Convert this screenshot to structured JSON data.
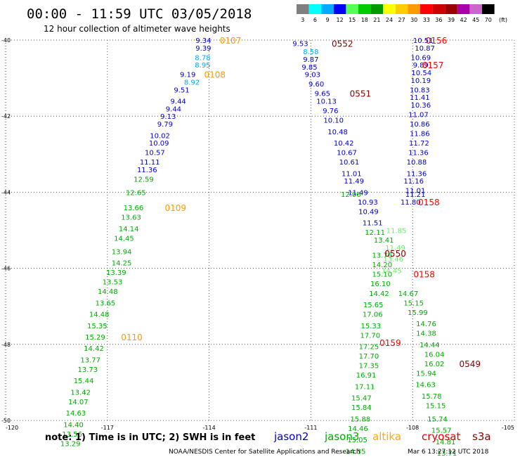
{
  "header": {
    "title": "00:00 - 11:59 UTC 03/05/2018",
    "subtitle": "12 hour collection of altimeter wave heights"
  },
  "legend": {
    "unit": "(ft)",
    "bins": [
      {
        "label": "3",
        "color": "#7f7f7f"
      },
      {
        "label": "6",
        "color": "#00ffff"
      },
      {
        "label": "9",
        "color": "#00aaff"
      },
      {
        "label": "12",
        "color": "#0000ff"
      },
      {
        "label": "15",
        "color": "#55ff55"
      },
      {
        "label": "18",
        "color": "#00cc00"
      },
      {
        "label": "21",
        "color": "#009900"
      },
      {
        "label": "24",
        "color": "#ffff00"
      },
      {
        "label": "27",
        "color": "#ffcc00"
      },
      {
        "label": "30",
        "color": "#ff9900"
      },
      {
        "label": "33",
        "color": "#ff0000"
      },
      {
        "label": "36",
        "color": "#cc0000"
      },
      {
        "label": "39",
        "color": "#990000"
      },
      {
        "label": "42",
        "color": "#aa00aa"
      },
      {
        "label": "45",
        "color": "#cc66cc"
      },
      {
        "label": "70",
        "color": "#000000"
      }
    ]
  },
  "footer": {
    "note": "note: 1) Time is in UTC; 2) SWH is in feet",
    "credit": "NOAA/NESDIS Center for Satellite Applications and Research",
    "timestamp": "Mar  6 13:27:12 UTC 2018",
    "satellites": [
      {
        "name": "jason2",
        "color": "#0000cc"
      },
      {
        "name": "jason3",
        "color": "#00aa00"
      },
      {
        "name": "altika",
        "color": "#ffaa00"
      },
      {
        "name": "cryosat",
        "color": "#dd0000"
      },
      {
        "name": "s3a",
        "color": "#880000"
      }
    ]
  },
  "chart_data": {
    "type": "scatter",
    "x_range": [
      -120,
      -105
    ],
    "y_range": [
      -50,
      -40
    ],
    "x_ticks": [
      {
        "value": -120,
        "label": "-120"
      },
      {
        "value": -117,
        "label": "-117"
      },
      {
        "value": -114,
        "label": "-114"
      },
      {
        "value": -111,
        "label": "-111"
      },
      {
        "value": -108,
        "label": "-108"
      },
      {
        "value": -105,
        "label": "-105"
      }
    ],
    "y_ticks": [
      {
        "value": -40,
        "label": "-40"
      },
      {
        "value": -42,
        "label": "-42"
      },
      {
        "value": -44,
        "label": "-44"
      },
      {
        "value": -46,
        "label": "-46"
      },
      {
        "value": -48,
        "label": "-48"
      },
      {
        "value": -50,
        "label": "-50"
      }
    ],
    "grid": true,
    "track_labels": [
      {
        "text": "0107",
        "lon": -113.37,
        "lat": -40.0,
        "color": "#ff9900"
      },
      {
        "text": "0108",
        "lon": -113.83,
        "lat": -40.9,
        "color": "#ff9900"
      },
      {
        "text": "0109",
        "lon": -114.99,
        "lat": -44.4,
        "color": "#ff9900"
      },
      {
        "text": "0110",
        "lon": -116.28,
        "lat": -47.8,
        "color": "#ff9900"
      },
      {
        "text": "0552",
        "lon": -110.07,
        "lat": -40.08,
        "color": "#880000"
      },
      {
        "text": "0551",
        "lon": -109.54,
        "lat": -41.4,
        "color": "#880000"
      },
      {
        "text": "0550",
        "lon": -108.51,
        "lat": -45.6,
        "color": "#880000"
      },
      {
        "text": "0549",
        "lon": -106.31,
        "lat": -48.5,
        "color": "#880000"
      },
      {
        "text": "0156",
        "lon": -107.3,
        "lat": -40.0,
        "color": "#ff0000"
      },
      {
        "text": "0157",
        "lon": -107.4,
        "lat": -40.65,
        "color": "#ff0000"
      },
      {
        "text": "0158",
        "lon": -107.52,
        "lat": -44.25,
        "color": "#ff0000"
      },
      {
        "text": "0158",
        "lon": -107.66,
        "lat": -46.15,
        "color": "#ff0000"
      },
      {
        "text": "0159",
        "lon": -108.66,
        "lat": -47.95,
        "color": "#ff0000"
      }
    ],
    "series": [
      {
        "name": "jason2",
        "color": "#0000cc",
        "points": [
          {
            "lon": -114.17,
            "lat": -40.0,
            "swh": "9.34"
          },
          {
            "lon": -114.17,
            "lat": -40.2,
            "swh": "9.39"
          },
          {
            "lon": -114.63,
            "lat": -40.9,
            "swh": "9.19"
          },
          {
            "lon": -114.81,
            "lat": -41.3,
            "swh": "9.51"
          },
          {
            "lon": -114.91,
            "lat": -41.6,
            "swh": "9.44"
          },
          {
            "lon": -115.05,
            "lat": -41.8,
            "swh": "9.44"
          },
          {
            "lon": -115.21,
            "lat": -42.0,
            "swh": "9.13"
          },
          {
            "lon": -115.3,
            "lat": -42.2,
            "swh": "9.79"
          },
          {
            "lon": -115.45,
            "lat": -42.5,
            "swh": "10.02"
          },
          {
            "lon": -115.48,
            "lat": -42.7,
            "swh": "10.09"
          },
          {
            "lon": -115.6,
            "lat": -42.95,
            "swh": "10.57"
          },
          {
            "lon": -115.75,
            "lat": -43.2,
            "swh": "11.11"
          },
          {
            "lon": -115.83,
            "lat": -43.4,
            "swh": "11.36"
          },
          {
            "lon": -111.31,
            "lat": -40.08,
            "swh": "9.53"
          },
          {
            "lon": -111.0,
            "lat": -40.5,
            "swh": "9.87"
          },
          {
            "lon": -111.04,
            "lat": -40.7,
            "swh": "9.85"
          },
          {
            "lon": -110.95,
            "lat": -40.9,
            "swh": "9.03"
          },
          {
            "lon": -110.84,
            "lat": -41.15,
            "swh": "9.60"
          },
          {
            "lon": -110.66,
            "lat": -41.4,
            "swh": "9.65"
          },
          {
            "lon": -110.54,
            "lat": -41.6,
            "swh": "10.13"
          },
          {
            "lon": -110.42,
            "lat": -41.85,
            "swh": "9.76"
          },
          {
            "lon": -110.33,
            "lat": -42.1,
            "swh": "10.10"
          },
          {
            "lon": -110.21,
            "lat": -42.4,
            "swh": "10.48"
          },
          {
            "lon": -110.03,
            "lat": -42.7,
            "swh": "10.42"
          },
          {
            "lon": -109.94,
            "lat": -42.95,
            "swh": "10.67"
          },
          {
            "lon": -109.87,
            "lat": -43.2,
            "swh": "10.61"
          },
          {
            "lon": -109.8,
            "lat": -43.5,
            "swh": "11.01"
          },
          {
            "lon": -109.73,
            "lat": -43.7,
            "swh": "11.49"
          },
          {
            "lon": -109.61,
            "lat": -44.0,
            "swh": "11.49"
          },
          {
            "lon": -109.32,
            "lat": -44.25,
            "swh": "10.93"
          },
          {
            "lon": -109.3,
            "lat": -44.5,
            "swh": "10.49"
          },
          {
            "lon": -109.18,
            "lat": -44.8,
            "swh": "11.51"
          },
          {
            "lon": -107.69,
            "lat": -40.0,
            "swh": "10.51"
          },
          {
            "lon": -107.64,
            "lat": -40.2,
            "swh": "10.87"
          },
          {
            "lon": -107.76,
            "lat": -40.45,
            "swh": "10.69"
          },
          {
            "lon": -107.76,
            "lat": -40.65,
            "swh": "9.89"
          },
          {
            "lon": -107.74,
            "lat": -40.85,
            "swh": "10.54"
          },
          {
            "lon": -107.76,
            "lat": -41.05,
            "swh": "10.19"
          },
          {
            "lon": -107.79,
            "lat": -41.3,
            "swh": "10.83"
          },
          {
            "lon": -107.79,
            "lat": -41.5,
            "swh": "11.41"
          },
          {
            "lon": -107.76,
            "lat": -41.7,
            "swh": "10.36"
          },
          {
            "lon": -107.83,
            "lat": -41.95,
            "swh": "11.07"
          },
          {
            "lon": -107.79,
            "lat": -42.2,
            "swh": "10.86"
          },
          {
            "lon": -107.79,
            "lat": -42.45,
            "swh": "11.86"
          },
          {
            "lon": -107.81,
            "lat": -42.7,
            "swh": "11.72"
          },
          {
            "lon": -107.83,
            "lat": -42.95,
            "swh": "11.36"
          },
          {
            "lon": -107.88,
            "lat": -43.2,
            "swh": "10.88"
          },
          {
            "lon": -107.88,
            "lat": -43.5,
            "swh": "11.36"
          },
          {
            "lon": -107.97,
            "lat": -43.7,
            "swh": "11.16"
          },
          {
            "lon": -107.92,
            "lat": -43.95,
            "swh": "11.01"
          },
          {
            "lon": -107.92,
            "lat": -44.05,
            "swh": "11.21"
          },
          {
            "lon": -108.06,
            "lat": -44.25,
            "swh": "11.80"
          }
        ]
      },
      {
        "name": "jason3",
        "color": "#00aa00",
        "points": [
          {
            "lon": -115.93,
            "lat": -43.65,
            "swh": "12.59"
          },
          {
            "lon": -116.16,
            "lat": -44.0,
            "swh": "12.65"
          },
          {
            "lon": -116.23,
            "lat": -44.4,
            "swh": "13.66"
          },
          {
            "lon": -116.3,
            "lat": -44.65,
            "swh": "13.63"
          },
          {
            "lon": -116.37,
            "lat": -44.95,
            "swh": "14.14"
          },
          {
            "lon": -116.51,
            "lat": -45.2,
            "swh": "14.45"
          },
          {
            "lon": -116.58,
            "lat": -45.55,
            "swh": "13.94"
          },
          {
            "lon": -116.58,
            "lat": -45.85,
            "swh": "14.25"
          },
          {
            "lon": -116.74,
            "lat": -46.1,
            "swh": "13.39"
          },
          {
            "lon": -116.85,
            "lat": -46.35,
            "swh": "13.53"
          },
          {
            "lon": -116.99,
            "lat": -46.6,
            "swh": "14.48"
          },
          {
            "lon": -117.06,
            "lat": -46.9,
            "swh": "13.65"
          },
          {
            "lon": -117.24,
            "lat": -47.2,
            "swh": "14.48"
          },
          {
            "lon": -117.3,
            "lat": -47.5,
            "swh": "15.35"
          },
          {
            "lon": -117.36,
            "lat": -47.8,
            "swh": "15.29"
          },
          {
            "lon": -117.4,
            "lat": -48.1,
            "swh": "14.42"
          },
          {
            "lon": -117.5,
            "lat": -48.4,
            "swh": "13.77"
          },
          {
            "lon": -117.58,
            "lat": -48.65,
            "swh": "13.73"
          },
          {
            "lon": -117.7,
            "lat": -48.95,
            "swh": "15.44"
          },
          {
            "lon": -117.79,
            "lat": -49.25,
            "swh": "13.42"
          },
          {
            "lon": -117.86,
            "lat": -49.5,
            "swh": "14.07"
          },
          {
            "lon": -117.93,
            "lat": -49.8,
            "swh": "14.63"
          },
          {
            "lon": -118.0,
            "lat": -50.1,
            "swh": "14.40"
          },
          {
            "lon": -118.04,
            "lat": -50.35,
            "swh": "13.56"
          },
          {
            "lon": -118.09,
            "lat": -50.6,
            "swh": "13.29"
          },
          {
            "lon": -109.82,
            "lat": -44.05,
            "swh": "12.06"
          },
          {
            "lon": -109.11,
            "lat": -45.05,
            "swh": "12.11"
          },
          {
            "lon": -108.85,
            "lat": -45.25,
            "swh": "13.41"
          },
          {
            "lon": -108.9,
            "lat": -45.65,
            "swh": "13.76"
          },
          {
            "lon": -108.9,
            "lat": -45.9,
            "swh": "14.20"
          },
          {
            "lon": -108.9,
            "lat": -46.15,
            "swh": "15.10"
          },
          {
            "lon": -108.95,
            "lat": -46.4,
            "swh": "16.10"
          },
          {
            "lon": -108.99,
            "lat": -46.65,
            "swh": "14.42"
          },
          {
            "lon": -109.16,
            "lat": -46.95,
            "swh": "15.65"
          },
          {
            "lon": -109.18,
            "lat": -47.2,
            "swh": "17.06"
          },
          {
            "lon": -109.23,
            "lat": -47.5,
            "swh": "15.33"
          },
          {
            "lon": -109.25,
            "lat": -47.75,
            "swh": "17.70"
          },
          {
            "lon": -109.29,
            "lat": -48.05,
            "swh": "17.25"
          },
          {
            "lon": -109.29,
            "lat": -48.3,
            "swh": "17.70"
          },
          {
            "lon": -109.29,
            "lat": -48.55,
            "swh": "17.35"
          },
          {
            "lon": -109.37,
            "lat": -48.8,
            "swh": "16.91"
          },
          {
            "lon": -109.41,
            "lat": -49.1,
            "swh": "17.11"
          },
          {
            "lon": -109.51,
            "lat": -49.4,
            "swh": "15.47"
          },
          {
            "lon": -109.51,
            "lat": -49.65,
            "swh": "15.84"
          },
          {
            "lon": -109.54,
            "lat": -49.95,
            "swh": "15.88"
          },
          {
            "lon": -109.61,
            "lat": -50.2,
            "swh": "14.46"
          },
          {
            "lon": -109.63,
            "lat": -50.5,
            "swh": "15.05"
          },
          {
            "lon": -109.68,
            "lat": -50.8,
            "swh": "14.35"
          },
          {
            "lon": -108.13,
            "lat": -46.65,
            "swh": "14.67"
          },
          {
            "lon": -107.97,
            "lat": -46.9,
            "swh": "15.15"
          },
          {
            "lon": -107.85,
            "lat": -47.15,
            "swh": "15.99"
          },
          {
            "lon": -107.6,
            "lat": -47.45,
            "swh": "14.76"
          },
          {
            "lon": -107.6,
            "lat": -47.7,
            "swh": "14.38"
          },
          {
            "lon": -107.5,
            "lat": -48.0,
            "swh": "14.44"
          },
          {
            "lon": -107.36,
            "lat": -48.25,
            "swh": "16.04"
          },
          {
            "lon": -107.36,
            "lat": -48.5,
            "swh": "16.02"
          },
          {
            "lon": -107.6,
            "lat": -48.75,
            "swh": "15.94"
          },
          {
            "lon": -107.62,
            "lat": -49.05,
            "swh": "14.63"
          },
          {
            "lon": -107.44,
            "lat": -49.35,
            "swh": "15.78"
          },
          {
            "lon": -107.32,
            "lat": -49.6,
            "swh": "15.15"
          },
          {
            "lon": -107.27,
            "lat": -49.95,
            "swh": "15.74"
          },
          {
            "lon": -107.15,
            "lat": -50.25,
            "swh": "15.57"
          },
          {
            "lon": -107.03,
            "lat": -50.55,
            "swh": "14.81"
          },
          {
            "lon": -106.99,
            "lat": -50.85,
            "swh": "13.71"
          }
        ]
      },
      {
        "name": "altika",
        "color": "#00aaee",
        "points": [
          {
            "lon": -114.19,
            "lat": -40.45,
            "swh": "8.78"
          },
          {
            "lon": -114.19,
            "lat": -40.65,
            "swh": "8.95"
          },
          {
            "lon": -114.51,
            "lat": -41.1,
            "swh": "8.92"
          },
          {
            "lon": -111.0,
            "lat": -40.3,
            "swh": "8.58"
          }
        ]
      },
      {
        "name": "cryosat",
        "color": "#66ee66",
        "points": [
          {
            "lon": -108.48,
            "lat": -45.0,
            "swh": "11.85"
          },
          {
            "lon": -108.51,
            "lat": -45.45,
            "swh": "11.49"
          },
          {
            "lon": -108.57,
            "lat": -45.75,
            "swh": "13.46"
          },
          {
            "lon": -108.62,
            "lat": -46.05,
            "swh": "14.45"
          }
        ]
      }
    ]
  }
}
